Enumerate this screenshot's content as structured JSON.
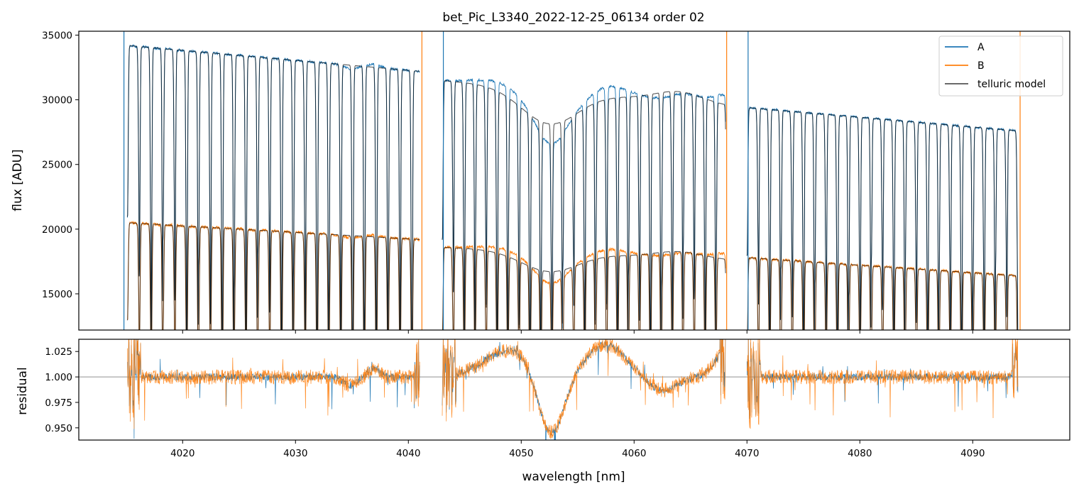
{
  "figure": {
    "title": "bet_Pic_L3340_2022-12-25_06134  order 02",
    "xlabel": "wavelength [nm]"
  },
  "chart_data": [
    {
      "type": "line",
      "panel": "top",
      "ylabel": "flux [ADU]",
      "xlim": [
        4010.8,
        4098.6
      ],
      "ylim": [
        12200,
        35300
      ],
      "yticks": [
        15000,
        20000,
        25000,
        30000,
        35000
      ],
      "ytick_labels": [
        "15000",
        "20000",
        "25000",
        "30000",
        "35000"
      ],
      "xticks": [
        4020,
        4030,
        4040,
        4050,
        4060,
        4070,
        4080,
        4090
      ],
      "xtick_labels": [
        "",
        "",
        "",
        "",
        "",
        "",
        "",
        ""
      ],
      "legend": {
        "placement": "upper right",
        "entries": [
          "A",
          "B",
          "telluric model"
        ]
      },
      "segments": [
        {
          "x": [
            4015.1,
            4041.0
          ],
          "A_start": 34200,
          "A_end": 32200,
          "B_start": 20500,
          "B_end": 19200,
          "line_period": 1.05
        },
        {
          "x": [
            4043.0,
            4068.1
          ],
          "A_start": 31500,
          "A_end": 29500,
          "B_start": 18600,
          "B_end": 17600,
          "line_period": 0.97
        },
        {
          "x": [
            4070.0,
            4094.0
          ],
          "A_start": 29400,
          "A_end": 27600,
          "B_start": 17800,
          "B_end": 16400,
          "line_period": 1.0
        }
      ],
      "spikes": [
        4014.8,
        4041.2,
        4043.1,
        4068.2,
        4070.1,
        4094.2
      ],
      "series": [
        {
          "name": "A",
          "color": "#1f77b4"
        },
        {
          "name": "B",
          "color": "#ff7f0e"
        },
        {
          "name": "telluric model",
          "color": "#555555"
        }
      ]
    },
    {
      "type": "line",
      "panel": "bottom",
      "ylabel": "residual",
      "xlim": [
        4010.8,
        4098.6
      ],
      "ylim": [
        0.938,
        1.037
      ],
      "yticks": [
        0.95,
        0.975,
        1.0,
        1.025
      ],
      "ytick_labels": [
        "0.950",
        "0.975",
        "1.000",
        "1.025"
      ],
      "xticks": [
        4020,
        4030,
        4040,
        4050,
        4060,
        4070,
        4080,
        4090
      ],
      "xtick_labels": [
        "4020",
        "4030",
        "4040",
        "4050",
        "4060",
        "4070",
        "4080",
        "4090"
      ],
      "reference_line": 1.0,
      "series": [
        {
          "name": "A",
          "color": "#1f77b4"
        },
        {
          "name": "B",
          "color": "#ff7f0e"
        }
      ]
    }
  ]
}
